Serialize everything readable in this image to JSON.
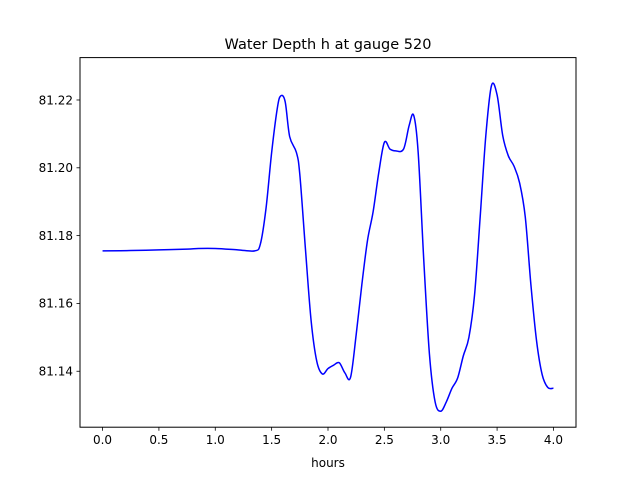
{
  "chart_data": {
    "type": "line",
    "title": "Water Depth h at gauge 520",
    "xlabel": "hours",
    "ylabel": "",
    "xlim": [
      -0.2,
      4.2
    ],
    "ylim": [
      81.1235,
      81.2325
    ],
    "xticks": [
      0.0,
      0.5,
      1.0,
      1.5,
      2.0,
      2.5,
      3.0,
      3.5,
      4.0
    ],
    "xtick_labels": [
      "0.0",
      "0.5",
      "1.0",
      "1.5",
      "2.0",
      "2.5",
      "3.0",
      "3.5",
      "4.0"
    ],
    "yticks": [
      81.14,
      81.16,
      81.18,
      81.2,
      81.22
    ],
    "ytick_labels": [
      "81.14",
      "81.16",
      "81.18",
      "81.20",
      "81.22"
    ],
    "grid": false,
    "series": [
      {
        "color": "#0000ff",
        "x": [
          0.0,
          0.25,
          0.5,
          0.75,
          0.85,
          1.0,
          1.2,
          1.35,
          1.4,
          1.45,
          1.5,
          1.55,
          1.58,
          1.62,
          1.66,
          1.72,
          1.75,
          1.8,
          1.85,
          1.9,
          1.95,
          2.0,
          2.05,
          2.1,
          2.15,
          2.2,
          2.25,
          2.3,
          2.35,
          2.4,
          2.45,
          2.5,
          2.55,
          2.6,
          2.67,
          2.72,
          2.76,
          2.8,
          2.85,
          2.9,
          2.95,
          3.0,
          3.05,
          3.1,
          3.15,
          3.2,
          3.25,
          3.3,
          3.35,
          3.4,
          3.45,
          3.5,
          3.55,
          3.6,
          3.65,
          3.7,
          3.75,
          3.8,
          3.85,
          3.9,
          3.95,
          4.0
        ],
        "y": [
          81.1755,
          81.1756,
          81.1758,
          81.176,
          81.1762,
          81.1762,
          81.1758,
          81.1755,
          81.1775,
          81.188,
          81.2045,
          81.2175,
          81.2212,
          81.2195,
          81.2092,
          81.2045,
          81.198,
          81.176,
          81.155,
          81.143,
          81.1392,
          81.1408,
          81.1418,
          81.1425,
          81.1395,
          81.1382,
          81.1508,
          81.1655,
          81.1785,
          81.187,
          81.1985,
          81.2075,
          81.2055,
          81.205,
          81.2055,
          81.2125,
          81.2155,
          81.2045,
          81.1725,
          81.145,
          81.131,
          81.1282,
          81.131,
          81.135,
          81.138,
          81.1445,
          81.15,
          81.1625,
          81.1855,
          81.2095,
          81.2242,
          81.2215,
          81.2095,
          81.2035,
          81.2005,
          81.1955,
          81.1855,
          81.1655,
          81.149,
          81.139,
          81.1352,
          81.135
        ]
      }
    ]
  }
}
